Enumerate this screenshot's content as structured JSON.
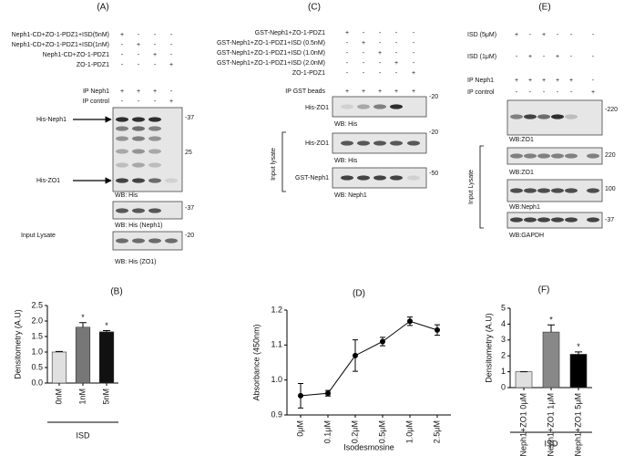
{
  "panels": [
    {
      "label": "(A)",
      "rows": [
        {
          "name": "Neph1-CD+ZO-1-PDZ1+ISD(5nM)",
          "signs": [
            "+",
            "-",
            "-",
            "-"
          ]
        },
        {
          "name": "Neph1-CD+ZO-1-PDZ1+ISD(1nM)",
          "signs": [
            "-",
            "+",
            "-",
            "-"
          ]
        },
        {
          "name": "Neph1-CD+ZO-1-PDZ1",
          "signs": [
            "-",
            "-",
            "+",
            "-"
          ]
        },
        {
          "name": "ZO-1-PDZ1",
          "signs": [
            "-",
            "-",
            "-",
            "+"
          ]
        },
        {
          "name": "IP Neph1",
          "signs": [
            "+",
            "+",
            "+",
            "-"
          ]
        },
        {
          "name": "IP control",
          "signs": [
            "-",
            "-",
            "-",
            "+"
          ]
        }
      ],
      "blots": [
        {
          "labels": [
            "His-Neph1",
            "His-ZO1"
          ],
          "markers": [
            "-37",
            "25"
          ],
          "caption": "WB: His"
        },
        {
          "markers": [
            "-37"
          ],
          "caption": "WB: His (Neph1)"
        },
        {
          "markers": [
            "-20"
          ],
          "caption": "WB: His (ZO1)"
        }
      ],
      "side_label": "Input Lysate"
    },
    {
      "label": "(C)",
      "rows": [
        {
          "name": "GST-Neph1+ZO-1-PDZ1",
          "signs": [
            "+",
            "-",
            "-",
            "-",
            "-"
          ]
        },
        {
          "name": "GST-Neph1+ZO-1-PDZ1+ISD  (0.5nM)",
          "signs": [
            "-",
            "+",
            "-",
            "-",
            "-"
          ]
        },
        {
          "name": "GST-Neph1+ZO-1-PDZ1+ISD  (1.0nM)",
          "signs": [
            "-",
            "-",
            "+",
            "-",
            "-"
          ]
        },
        {
          "name": "GST-Neph1+ZO-1-PDZ1+ISD  (2.0nM)",
          "signs": [
            "-",
            "-",
            "-",
            "+",
            "-"
          ]
        },
        {
          "name": "ZO-1-PDZ1",
          "signs": [
            "-",
            "-",
            "-",
            "-",
            "+"
          ]
        },
        {
          "name": "IP GST beads",
          "signs": [
            "+",
            "+",
            "+",
            "+",
            "+"
          ]
        }
      ],
      "blots": [
        {
          "labels": [
            "His-ZO1"
          ],
          "markers": [
            "-20"
          ],
          "caption": "WB: His"
        },
        {
          "labels": [
            "His-ZO1"
          ],
          "markers": [
            "-20"
          ],
          "caption": "WB: His"
        },
        {
          "labels": [
            "GST-Neph1"
          ],
          "markers": [
            "-50"
          ],
          "caption": "WB: Neph1"
        }
      ],
      "side_label": "Input lysate"
    },
    {
      "label": "(E)",
      "rows": [
        {
          "name": "ISD (5μM)",
          "signs": [
            "+",
            "-",
            "+",
            "-",
            "-",
            "-"
          ]
        },
        {
          "name": "ISD (1μM)",
          "signs": [
            "-",
            "+",
            "-",
            "+",
            "-",
            "-"
          ]
        },
        {
          "name": "IP Neph1",
          "signs": [
            "+",
            "+",
            "+",
            "+",
            "+",
            "-"
          ]
        },
        {
          "name": "IP control",
          "signs": [
            "-",
            "-",
            "-",
            "-",
            "-",
            "+"
          ]
        }
      ],
      "blots": [
        {
          "markers": [
            "-220"
          ],
          "caption": "WB:ZO1"
        },
        {
          "markers": [
            "220"
          ],
          "caption": "WB:ZO1"
        },
        {
          "markers": [
            "100"
          ],
          "caption": "WB:Neph1"
        },
        {
          "markers": [
            "-37"
          ],
          "caption": "WB:GAPDH"
        }
      ],
      "side_label": "Input Lysate"
    }
  ],
  "chart_data": [
    {
      "type": "bar",
      "title": "(B)",
      "x_label": "ISD",
      "y_label": "Densitometry (A.U)",
      "categories": [
        "0nM",
        "1nM",
        "5nM"
      ],
      "values": [
        1.0,
        1.8,
        1.65
      ],
      "errors": [
        0.02,
        0.15,
        0.04
      ],
      "significance": [
        null,
        "*",
        "*"
      ],
      "colors": [
        "#e0e0e0",
        "#777777",
        "#111111"
      ],
      "ylim": [
        0,
        2.5
      ],
      "yticks": [
        {
          "value": 0,
          "label": "0.0"
        },
        0.5,
        {
          "value": 1,
          "label": "1.0"
        },
        1.5,
        {
          "value": 2,
          "label": "2.0"
        },
        2.5
      ]
    },
    {
      "type": "line",
      "title": "(D)",
      "x_label": "Isodesmosine",
      "y_label": "Absorbance (450nm)",
      "categories": [
        "0μM",
        "0.1μM",
        "0.2μM",
        "0.5μM",
        "1.0μM",
        "2.5μM"
      ],
      "values": [
        0.955,
        0.962,
        1.07,
        1.11,
        1.168,
        1.143
      ],
      "errors": [
        0.035,
        0.008,
        0.045,
        0.012,
        0.012,
        0.015
      ],
      "color": "#000000",
      "ylim": [
        0.9,
        1.2
      ],
      "yticks": [
        0.9,
        {
          "value": 1,
          "label": "1.0"
        },
        1.1,
        1.2
      ]
    },
    {
      "type": "bar",
      "title": "(F)",
      "x_label": "ISD",
      "y_label": "Densitometry (A.U)",
      "categories": [
        "Neph1+ZO1 0μM",
        "Neph1+ZO1 1μM",
        "Neph1+ZO1 5μM"
      ],
      "values": [
        1.0,
        3.5,
        2.1
      ],
      "errors": [
        0,
        0.45,
        0.15
      ],
      "significance": [
        null,
        "*",
        "*"
      ],
      "colors": [
        "#e0e0e0",
        "#888888",
        "#000000"
      ],
      "ylim": [
        0,
        5
      ],
      "yticks": [
        0,
        1,
        2,
        3,
        4,
        5
      ]
    }
  ]
}
